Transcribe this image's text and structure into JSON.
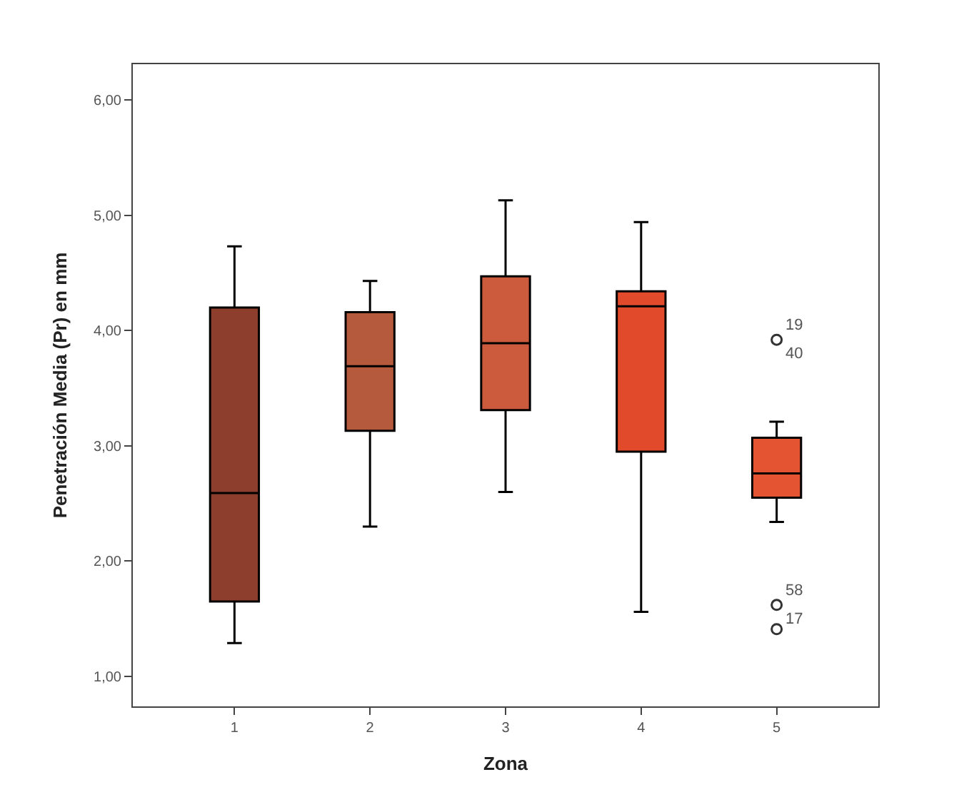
{
  "chart_data": {
    "type": "box",
    "xlabel": "Zona",
    "ylabel": "Penetración Media (Pr) en mm",
    "categories": [
      "1",
      "2",
      "3",
      "4",
      "5"
    ],
    "colors": [
      "#8e3e2c",
      "#b65a3e",
      "#cc5a3c",
      "#e24a2c",
      "#e55432"
    ],
    "boxes": [
      {
        "low": 1.29,
        "q1": 1.65,
        "median": 2.59,
        "q3": 4.2,
        "high": 4.73
      },
      {
        "low": 2.3,
        "q1": 3.13,
        "median": 3.69,
        "q3": 4.16,
        "high": 4.43
      },
      {
        "low": 2.6,
        "q1": 3.31,
        "median": 3.89,
        "q3": 4.47,
        "high": 5.13
      },
      {
        "low": 1.56,
        "q1": 2.95,
        "median": 4.21,
        "q3": 4.34,
        "high": 4.94
      },
      {
        "low": 2.34,
        "q1": 2.55,
        "median": 2.76,
        "q3": 3.07,
        "high": 3.21
      }
    ],
    "series": [
      {
        "type": "scatter",
        "color": "#333333",
        "x": [
          "5",
          "5",
          "5"
        ],
        "values": [
          3.92,
          1.62,
          1.41
        ]
      }
    ],
    "ylim": [
      0.74,
      6.31
    ],
    "yticks": [
      {
        "value": 1,
        "label": "1,00"
      },
      {
        "value": 2,
        "label": "2,00"
      },
      {
        "value": 3,
        "label": "3,00"
      },
      {
        "value": 4,
        "label": "4,00"
      },
      {
        "value": 5,
        "label": "5,00"
      },
      {
        "value": 6,
        "label": "6,00"
      }
    ],
    "marker": "circle",
    "annotations": [
      {
        "text": "19",
        "x": "5",
        "y": 3.92
      },
      {
        "text": "40",
        "x": "5",
        "y": 3.92
      },
      {
        "text": "58",
        "x": "5",
        "y": 1.62
      },
      {
        "text": "17",
        "x": "5",
        "y": 1.62
      }
    ]
  }
}
